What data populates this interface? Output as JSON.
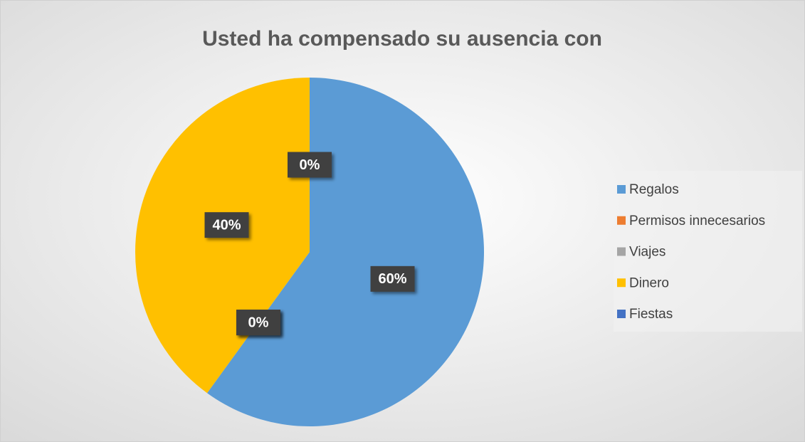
{
  "chart_data": {
    "type": "pie",
    "title": "Usted ha compensado su ausencia con",
    "categories": [
      "Regalos",
      "Permisos innecesarios",
      "Viajes",
      "Dinero",
      "Fiestas"
    ],
    "values": [
      60,
      0,
      0,
      40,
      0
    ],
    "value_labels": [
      "60%",
      "0%",
      "0%",
      "40%",
      "0%"
    ],
    "colors": [
      "#5b9bd5",
      "#ed7d31",
      "#a5a5a5",
      "#ffc000",
      "#4472c4"
    ],
    "legend": "right"
  }
}
